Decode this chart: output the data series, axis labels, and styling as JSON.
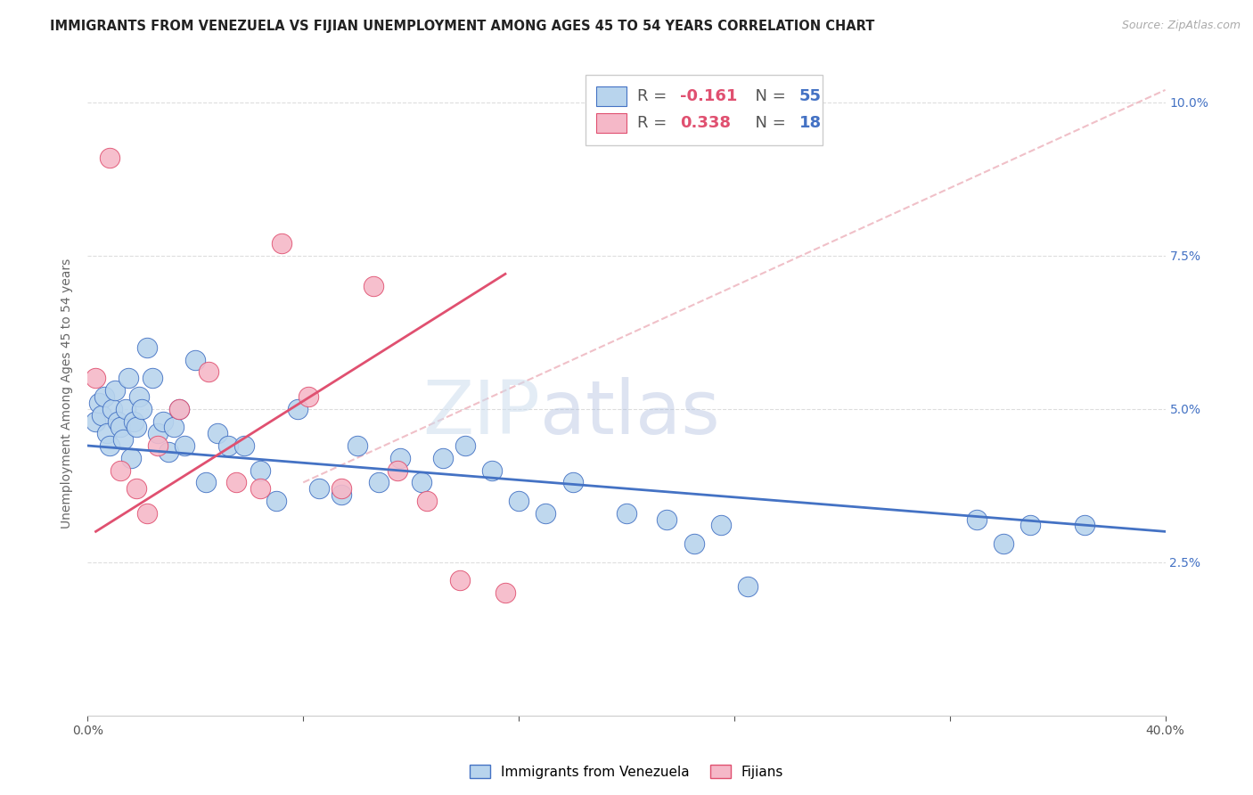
{
  "title": "IMMIGRANTS FROM VENEZUELA VS FIJIAN UNEMPLOYMENT AMONG AGES 45 TO 54 YEARS CORRELATION CHART",
  "source": "Source: ZipAtlas.com",
  "ylabel": "Unemployment Among Ages 45 to 54 years",
  "xlim": [
    0.0,
    0.4
  ],
  "ylim": [
    0.0,
    0.105
  ],
  "xticks": [
    0.0,
    0.08,
    0.16,
    0.24,
    0.32,
    0.4
  ],
  "xticklabels": [
    "0.0%",
    "",
    "",
    "",
    "",
    "40.0%"
  ],
  "yticks": [
    0.025,
    0.05,
    0.075,
    0.1
  ],
  "yticklabels": [
    "2.5%",
    "5.0%",
    "7.5%",
    "10.0%"
  ],
  "blue_color": "#b8d4ed",
  "pink_color": "#f5b8c8",
  "line_blue": "#4472c4",
  "line_pink": "#e05070",
  "line_dashed_color": "#f0c0c8",
  "watermark_zip": "ZIP",
  "watermark_atlas": "atlas",
  "blue_points_x": [
    0.003,
    0.004,
    0.005,
    0.006,
    0.007,
    0.008,
    0.009,
    0.01,
    0.011,
    0.012,
    0.013,
    0.014,
    0.015,
    0.016,
    0.017,
    0.018,
    0.019,
    0.02,
    0.022,
    0.024,
    0.026,
    0.028,
    0.03,
    0.032,
    0.034,
    0.036,
    0.04,
    0.044,
    0.048,
    0.052,
    0.058,
    0.064,
    0.07,
    0.078,
    0.086,
    0.094,
    0.1,
    0.108,
    0.116,
    0.124,
    0.132,
    0.14,
    0.15,
    0.16,
    0.17,
    0.18,
    0.2,
    0.215,
    0.225,
    0.235,
    0.245,
    0.33,
    0.34,
    0.35,
    0.37
  ],
  "blue_points_y": [
    0.048,
    0.051,
    0.049,
    0.052,
    0.046,
    0.044,
    0.05,
    0.053,
    0.048,
    0.047,
    0.045,
    0.05,
    0.055,
    0.042,
    0.048,
    0.047,
    0.052,
    0.05,
    0.06,
    0.055,
    0.046,
    0.048,
    0.043,
    0.047,
    0.05,
    0.044,
    0.058,
    0.038,
    0.046,
    0.044,
    0.044,
    0.04,
    0.035,
    0.05,
    0.037,
    0.036,
    0.044,
    0.038,
    0.042,
    0.038,
    0.042,
    0.044,
    0.04,
    0.035,
    0.033,
    0.038,
    0.033,
    0.032,
    0.028,
    0.031,
    0.021,
    0.032,
    0.028,
    0.031,
    0.031
  ],
  "pink_points_x": [
    0.003,
    0.008,
    0.012,
    0.018,
    0.022,
    0.026,
    0.034,
    0.045,
    0.055,
    0.064,
    0.072,
    0.082,
    0.094,
    0.106,
    0.115,
    0.126,
    0.138,
    0.155
  ],
  "pink_points_y": [
    0.055,
    0.091,
    0.04,
    0.037,
    0.033,
    0.044,
    0.05,
    0.056,
    0.038,
    0.037,
    0.077,
    0.052,
    0.037,
    0.07,
    0.04,
    0.035,
    0.022,
    0.02
  ],
  "blue_line_x": [
    0.0,
    0.4
  ],
  "blue_line_y": [
    0.044,
    0.03
  ],
  "pink_line_x": [
    0.003,
    0.155
  ],
  "pink_line_y": [
    0.03,
    0.072
  ],
  "dashed_line_x": [
    0.08,
    0.4
  ],
  "dashed_line_y": [
    0.038,
    0.102
  ],
  "title_fontsize": 10.5,
  "axis_label_fontsize": 10,
  "tick_fontsize": 10,
  "legend_fontsize": 13
}
